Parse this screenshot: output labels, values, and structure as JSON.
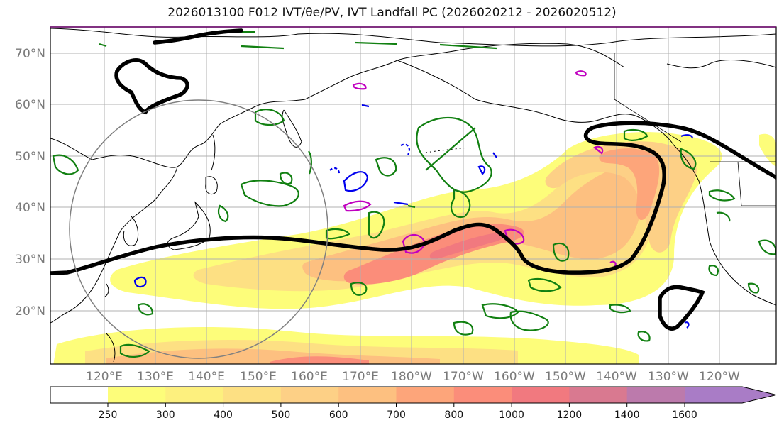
{
  "title": "2026013100 F012 IVT/θe/PV, IVT Landfall PC (2026020212 - 2026020512)",
  "map": {
    "lat_labels": [
      "70°N",
      "60°N",
      "50°N",
      "40°N",
      "30°N",
      "20°N"
    ],
    "lon_labels": [
      "120°E",
      "130°E",
      "140°E",
      "150°E",
      "160°E",
      "170°E",
      "180°W",
      "170°W",
      "160°W",
      "150°W",
      "140°W",
      "130°W",
      "120°W"
    ]
  },
  "colorbar": {
    "tick_labels": [
      "250",
      "300",
      "400",
      "500",
      "600",
      "700",
      "800",
      "1000",
      "1200",
      "1400",
      "1600"
    ],
    "colors": [
      "#fdfd7a",
      "#fdf07e",
      "#fde083",
      "#fdd086",
      "#fdc080",
      "#fda57a",
      "#fb8d7a",
      "#f1797f",
      "#d97990",
      "#bc7aac",
      "#a97cc6"
    ]
  },
  "colors": {
    "contour_black": "#000000",
    "theta_e_green": "#118011",
    "pv_blue": "#0000ee",
    "pv_magenta": "#c000c0",
    "grid": "#b0b0b0",
    "circle": "#808080"
  }
}
